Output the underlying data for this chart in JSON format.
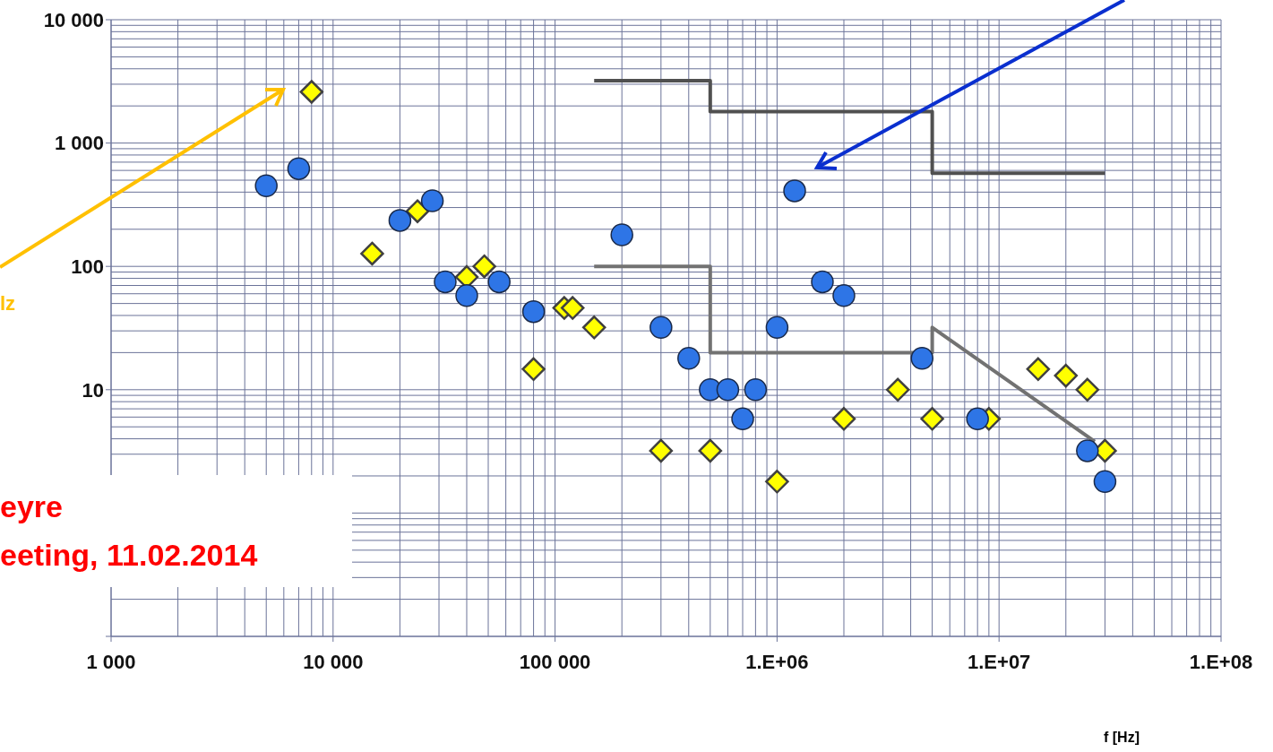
{
  "chart_data": {
    "type": "scatter",
    "xlabel": "f [Hz]",
    "log": "xy",
    "grid": true,
    "xlim": [
      1000,
      100000000
    ],
    "xticks": [
      {
        "value": 1000,
        "label": "1 000"
      },
      {
        "value": 10000,
        "label": "10 000"
      },
      {
        "value": 100000,
        "label": "100 000"
      },
      {
        "value": 1000000,
        "label": "1.E+06"
      },
      {
        "value": 10000000,
        "label": "1.E+07"
      },
      {
        "value": 100000000,
        "label": "1.E+08"
      }
    ],
    "ylim": [
      0.1,
      10000
    ],
    "yticks": [
      {
        "value": 0.1,
        "label": null
      },
      {
        "value": 1,
        "label": null
      },
      10,
      100,
      {
        "value": 1000,
        "label": "1 000"
      },
      {
        "value": 10000,
        "label": "10 000"
      }
    ],
    "annotations": [
      "lz",
      "eyre",
      "eeting, 11.02.2014"
    ],
    "series": [
      {
        "type": "line",
        "marker": "none",
        "line_style": "solid",
        "color": "#505050",
        "x": [
          150000,
          500000,
          500000,
          5000000,
          5000000,
          30000000
        ],
        "values": [
          3200,
          3200,
          1800,
          1800,
          570,
          570
        ]
      },
      {
        "type": "line",
        "marker": "none",
        "line_style": "solid",
        "color": "#727272",
        "x": [
          150000,
          500000,
          500000,
          5000000,
          5000000,
          27000000
        ],
        "values": [
          100,
          100,
          20,
          20,
          32,
          3.8
        ]
      },
      {
        "marker": "diamond",
        "color": "#ffff00",
        "x": [
          8000,
          15000,
          24000,
          40000,
          48000,
          80000,
          110000,
          120000,
          150000,
          300000,
          500000,
          1000000,
          2000000,
          3500000,
          5000000,
          9000000,
          15000000,
          20000000,
          25000000,
          30000000
        ],
        "values": [
          2600,
          127,
          280,
          82,
          100,
          14.7,
          46,
          46,
          32,
          3.2,
          3.2,
          1.8,
          5.8,
          10,
          5.8,
          5.8,
          14.7,
          13,
          10,
          3.2
        ]
      },
      {
        "marker": "circle",
        "color": "#2e75e6",
        "x": [
          5000,
          7000,
          20000,
          28000,
          32000,
          40000,
          56000,
          80000,
          200000,
          300000,
          400000,
          500000,
          600000,
          700000,
          800000,
          1000000,
          1200000,
          1600000,
          2000000,
          4500000,
          8000000,
          25000000,
          30000000
        ],
        "values": [
          450,
          620,
          236,
          340,
          75,
          58,
          75,
          43,
          180,
          32,
          18,
          10,
          10,
          5.8,
          10,
          32,
          410,
          75,
          58,
          18,
          5.8,
          3.2,
          1.8
        ]
      }
    ]
  }
}
